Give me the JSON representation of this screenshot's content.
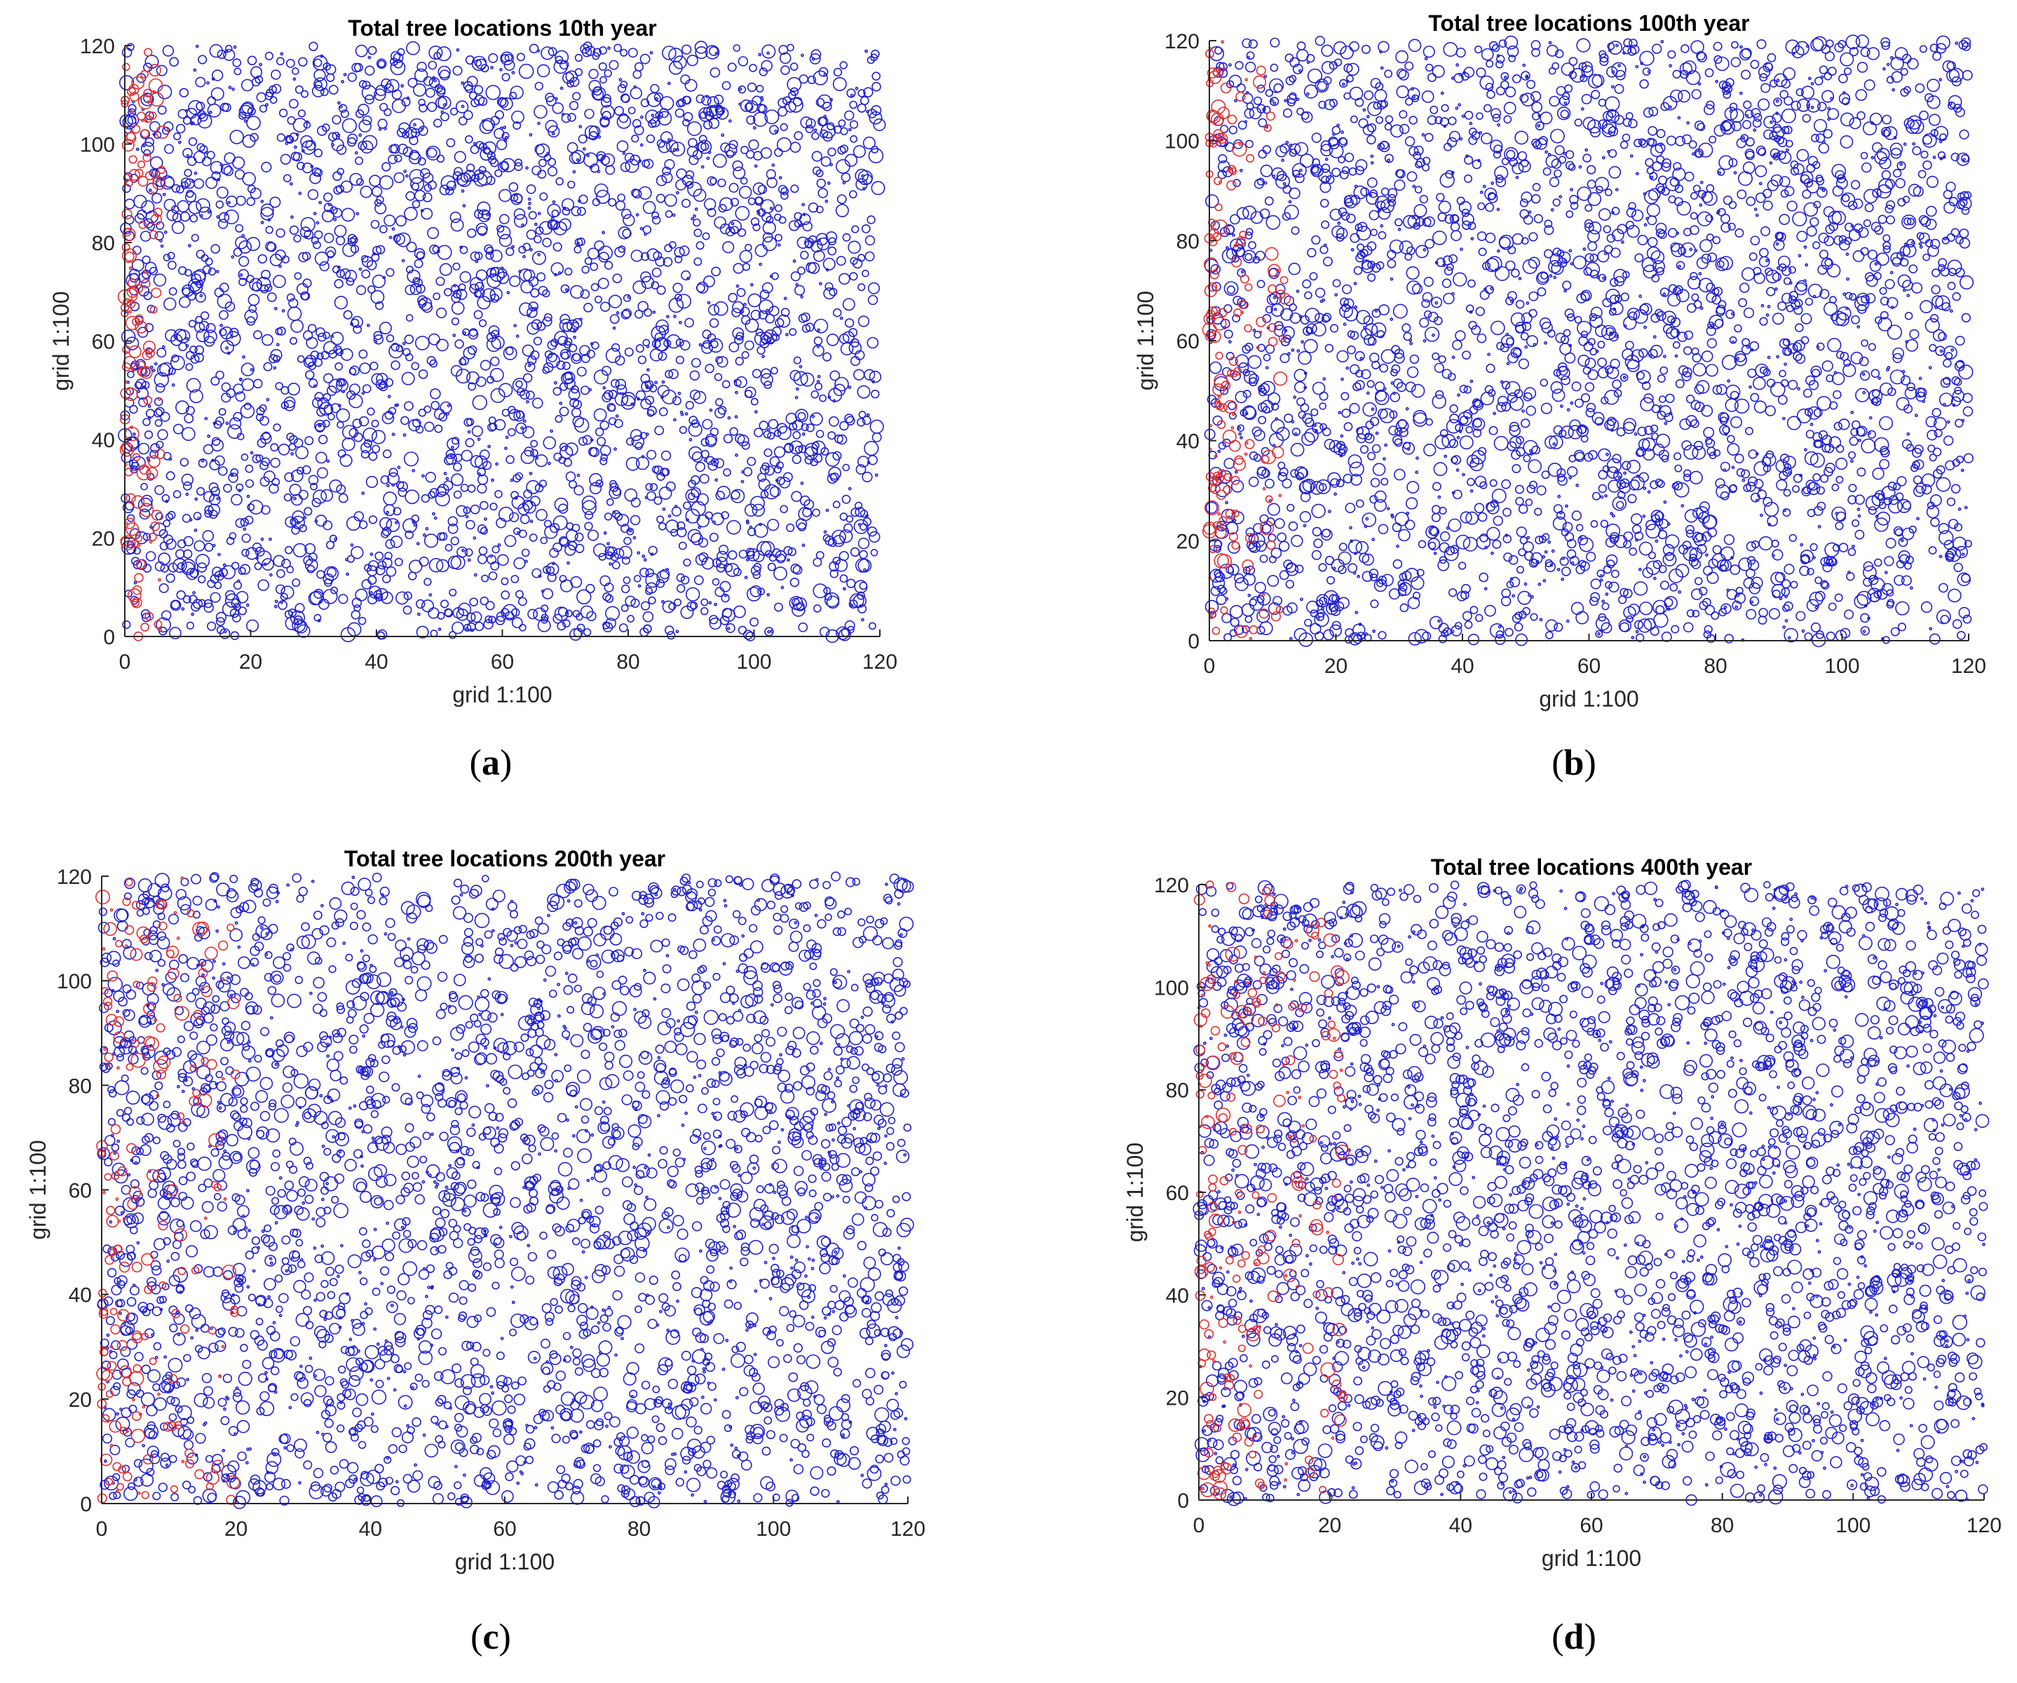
{
  "chart_data": [
    {
      "id": "a",
      "type": "scatter",
      "title": "Total tree locations 10th year",
      "xlabel": "grid 1:100",
      "ylabel": "grid 1:100",
      "xlim": [
        0,
        120
      ],
      "ylim": [
        0,
        120
      ],
      "xticks": [
        "0",
        "20",
        "40",
        "60",
        "80",
        "100",
        "120"
      ],
      "yticks": [
        "0",
        "20",
        "40",
        "60",
        "80",
        "100",
        "120"
      ],
      "caption": {
        "open": "(",
        "letter": "a",
        "close": ")"
      },
      "series": [
        {
          "color": "#2222cc",
          "marker": "circle-open",
          "count": 3000,
          "x_range": [
            0,
            120
          ],
          "y_range": [
            0,
            120
          ]
        },
        {
          "color": "#e03030",
          "marker": "circle-open",
          "count": 130,
          "x_range": [
            0,
            6
          ],
          "y_range": [
            0,
            120
          ]
        }
      ]
    },
    {
      "id": "b",
      "type": "scatter",
      "title": "Total tree locations 100th year",
      "xlabel": "grid 1:100",
      "ylabel": "grid 1:100",
      "xlim": [
        0,
        120
      ],
      "ylim": [
        0,
        120
      ],
      "xticks": [
        "0",
        "20",
        "40",
        "60",
        "80",
        "100",
        "120"
      ],
      "yticks": [
        "0",
        "20",
        "40",
        "60",
        "80",
        "100",
        "120"
      ],
      "caption": {
        "open": "(",
        "letter": "b",
        "close": ")"
      },
      "series": [
        {
          "color": "#2222cc",
          "marker": "circle-open",
          "count": 3000,
          "x_range": [
            0,
            120
          ],
          "y_range": [
            0,
            120
          ]
        },
        {
          "color": "#e03030",
          "marker": "circle-open",
          "count": 160,
          "x_range": [
            0,
            12
          ],
          "y_range": [
            0,
            120
          ]
        }
      ]
    },
    {
      "id": "c",
      "type": "scatter",
      "title": "Total tree locations 200th year",
      "xlabel": "grid 1:100",
      "ylabel": "grid 1:100",
      "xlim": [
        0,
        120
      ],
      "ylim": [
        0,
        120
      ],
      "xticks": [
        "0",
        "20",
        "40",
        "60",
        "80",
        "100",
        "120"
      ],
      "yticks": [
        "0",
        "20",
        "40",
        "60",
        "80",
        "100",
        "120"
      ],
      "caption": {
        "open": "(",
        "letter": "c",
        "close": ")"
      },
      "series": [
        {
          "color": "#2222cc",
          "marker": "circle-open",
          "count": 3000,
          "x_range": [
            0,
            120
          ],
          "y_range": [
            0,
            120
          ]
        },
        {
          "color": "#e03030",
          "marker": "circle-open",
          "count": 180,
          "x_range": [
            0,
            20
          ],
          "y_range": [
            0,
            120
          ]
        }
      ]
    },
    {
      "id": "d",
      "type": "scatter",
      "title": "Total tree locations 400th year",
      "xlabel": "grid 1:100",
      "ylabel": "grid 1:100",
      "xlim": [
        0,
        120
      ],
      "ylim": [
        0,
        120
      ],
      "xticks": [
        "0",
        "20",
        "40",
        "60",
        "80",
        "100",
        "120"
      ],
      "yticks": [
        "0",
        "20",
        "40",
        "60",
        "80",
        "100",
        "120"
      ],
      "caption": {
        "open": "(",
        "letter": "d",
        "close": ")"
      },
      "series": [
        {
          "color": "#2222cc",
          "marker": "circle-open",
          "count": 3000,
          "x_range": [
            0,
            120
          ],
          "y_range": [
            0,
            120
          ]
        },
        {
          "color": "#e03030",
          "marker": "circle-open",
          "count": 200,
          "x_range": [
            0,
            22
          ],
          "y_range": [
            0,
            120
          ]
        }
      ]
    }
  ]
}
